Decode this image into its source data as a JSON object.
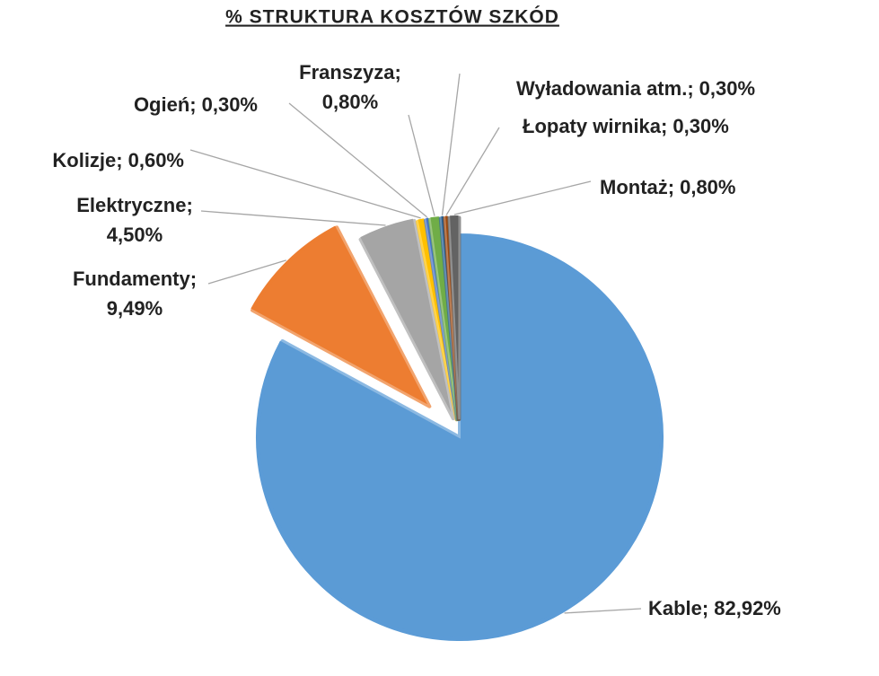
{
  "chart_data": {
    "type": "pie",
    "title": "% STRUKTURA KOSZTÓW SZKÓD",
    "categories": [
      "Kable",
      "Fundamenty",
      "Elektryczne",
      "Kolizje",
      "Ogień",
      "Franszyza",
      "Wyładowania atm.",
      "Łopaty wirnika",
      "Montaż"
    ],
    "values": [
      82.92,
      9.49,
      4.5,
      0.6,
      0.3,
      0.8,
      0.3,
      0.3,
      0.8
    ],
    "value_labels": [
      "82,92%",
      "9,49%",
      "4,50%",
      "0,60%",
      "0,30%",
      "0,80%",
      "0,30%",
      "0,30%",
      "0,80%"
    ],
    "label_separator": ";",
    "colors": [
      "#5b9bd5",
      "#ed7d31",
      "#a5a5a5",
      "#ffc000",
      "#4472c4",
      "#70ad47",
      "#255e91",
      "#9e480e",
      "#636363"
    ]
  }
}
